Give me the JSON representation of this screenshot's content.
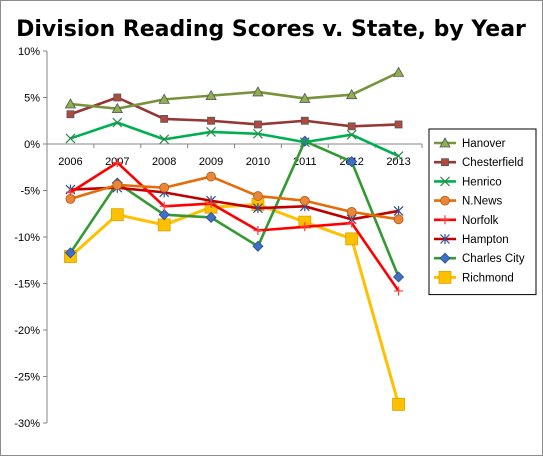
{
  "chart_data": {
    "type": "line",
    "title": "Division Reading Scores v. State, by Year",
    "xlabel": "",
    "ylabel": "",
    "categories": [
      "2006",
      "2007",
      "2008",
      "2009",
      "2010",
      "2011",
      "2012",
      "2013"
    ],
    "ylim": [
      -30,
      10
    ],
    "yticks": [
      10,
      5,
      0,
      -5,
      -10,
      -15,
      -20,
      -25,
      -30
    ],
    "ytick_labels": [
      "10%",
      "5%",
      "0%",
      "-5%",
      "-10%",
      "-15%",
      "-20%",
      "-25%",
      "-30%"
    ],
    "grid": false,
    "legend_position": "right",
    "series": [
      {
        "name": "Hanover",
        "color": "#77933c",
        "marker": "triangle",
        "values": [
          4.3,
          3.8,
          4.8,
          5.2,
          5.6,
          4.9,
          5.3,
          7.7
        ]
      },
      {
        "name": "Chesterfield",
        "color": "#953735",
        "marker": "square",
        "values": [
          3.2,
          5.0,
          2.7,
          2.5,
          2.1,
          2.5,
          1.9,
          2.1
        ]
      },
      {
        "name": "Henrico",
        "color": "#00b050",
        "marker": "x",
        "values": [
          0.6,
          2.3,
          0.5,
          1.3,
          1.1,
          0.2,
          1.0,
          -1.3
        ]
      },
      {
        "name": "N.News",
        "color": "#e46c0a",
        "marker": "circle",
        "values": [
          -5.9,
          -4.4,
          -4.7,
          -3.5,
          -5.6,
          -6.1,
          -7.3,
          -8.1
        ]
      },
      {
        "name": "Norfolk",
        "color": "#ff0000",
        "marker": "plus",
        "values": [
          -5.2,
          -2.0,
          -6.7,
          -6.4,
          -9.3,
          -8.9,
          -8.5,
          -15.8
        ]
      },
      {
        "name": "Hampton",
        "color": "#c00000",
        "marker": "star",
        "values": [
          -4.9,
          -4.7,
          -5.2,
          -6.1,
          -6.9,
          -6.7,
          -8.1,
          -7.2
        ]
      },
      {
        "name": "Charles City",
        "color": "#339933",
        "marker": "diamond",
        "values": [
          -11.7,
          -4.2,
          -7.6,
          -7.9,
          -11.0,
          0.3,
          -1.9,
          -14.3
        ]
      },
      {
        "name": "Richmond",
        "color": "#ffc000",
        "marker": "bigsquare",
        "values": [
          -12.1,
          -7.6,
          -8.7,
          -6.8,
          -6.5,
          -8.4,
          -10.2,
          -28.0
        ]
      }
    ],
    "marker_colors": {
      "Hanover": "#8db050",
      "Chesterfield": "#b04a3f",
      "Henrico": "#2c8a4c",
      "N.News": "#e8873a",
      "Norfolk": "#ff3b3b",
      "Hampton": "#2f4f8f",
      "Charles City": "#3f6fc6",
      "Richmond": "#ffc000"
    }
  }
}
